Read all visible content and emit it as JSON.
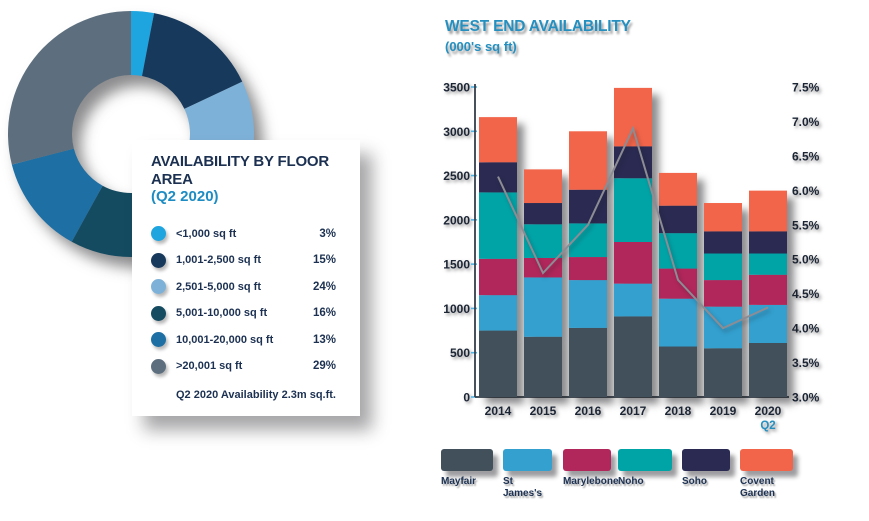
{
  "page": {
    "background": "#FFFFFF"
  },
  "colors": {
    "title_blue": "#2590C0",
    "text_navy": "#1C3152",
    "axis_text": "#1C2534",
    "trend_line": "#8C8C94",
    "axis_line": "#343E49",
    "tick_mark": "#4FB7E8"
  },
  "chart_data": [
    {
      "type": "pie",
      "donut": true,
      "title": "AVAILABILITY BY FLOOR AREA",
      "subtitle": "(Q2 2020)",
      "note": "Q2 2020 Availability 2.3m sq.ft.",
      "unit": "%",
      "start_angle_deg": -90,
      "clockwise": true,
      "segments": [
        {
          "label": "<1,000 sq ft",
          "value": 3,
          "color": "#1EA5E0"
        },
        {
          "label": "1,001-2,500 sq ft",
          "value": 15,
          "color": "#17395C"
        },
        {
          "label": "2,501-5,000 sq ft",
          "value": 24,
          "color": "#7EB1D8"
        },
        {
          "label": "5,001-10,000 sq ft",
          "value": 16,
          "color": "#154B61"
        },
        {
          "label": "10,001-20,000 sq ft",
          "value": 13,
          "color": "#1E6FA4"
        },
        {
          "label": ">20,001 sq ft",
          "value": 29,
          "color": "#5D6F7E"
        }
      ]
    },
    {
      "type": "bar",
      "stacked": true,
      "title": "WEST END AVAILABILITY",
      "subtitle": "(000's sq ft)",
      "categories": [
        "2014",
        "2015",
        "2016",
        "2017",
        "2018",
        "2019",
        "2020 Q2"
      ],
      "series": [
        {
          "name": "Mayfair",
          "color": "#42505C",
          "values": [
            750,
            680,
            780,
            910,
            570,
            550,
            610
          ]
        },
        {
          "name": "St James's",
          "color": "#33A0CF",
          "values": [
            400,
            670,
            540,
            370,
            540,
            470,
            430
          ]
        },
        {
          "name": "Marylebone",
          "color": "#B1275B",
          "values": [
            410,
            220,
            260,
            470,
            340,
            300,
            340
          ]
        },
        {
          "name": "Noho",
          "color": "#00A4A7",
          "values": [
            750,
            380,
            380,
            720,
            400,
            300,
            240
          ]
        },
        {
          "name": "Soho",
          "color": "#2A2A52",
          "values": [
            340,
            240,
            380,
            360,
            310,
            250,
            250
          ]
        },
        {
          "name": "Covent Garden",
          "color": "#F3654A",
          "values": [
            510,
            380,
            660,
            660,
            370,
            320,
            460
          ]
        }
      ],
      "totals": [
        3160,
        2570,
        3000,
        3490,
        2530,
        2190,
        2330
      ],
      "line_overlay": {
        "axis": "right",
        "color": "#8C8C94",
        "values": [
          6.2,
          4.8,
          5.5,
          6.9,
          4.7,
          4.0,
          4.3
        ]
      },
      "y_left_axis": {
        "min": 0,
        "max": 3500,
        "step": 500
      },
      "y_right_axis": {
        "min": 3.0,
        "max": 7.5,
        "step": 0.5,
        "suffix": "%"
      },
      "legend_position": "bottom",
      "grid": false
    }
  ]
}
